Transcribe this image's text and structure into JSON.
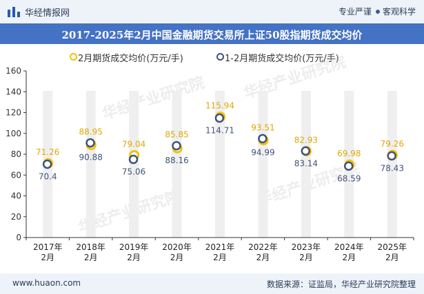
{
  "header": {
    "brand": "华经情报网",
    "tag_1": "专业严谨",
    "tag_2": "客观科学",
    "logo_icon": "bar-chart-logo-icon"
  },
  "watermark": "华经产业研究院",
  "footer": {
    "site": "www.huaon.com",
    "source": "数据来源：证监局，华经产业研究院整理"
  },
  "chart_data": {
    "type": "scatter",
    "title": "2017-2025年2月中国金融期货交易所上证50股指期货成交均价",
    "categories": [
      "2017年\n2月",
      "2018年\n2月",
      "2019年\n2月",
      "2020年\n2月",
      "2021年\n2月",
      "2022年\n2月",
      "2023年\n2月",
      "2024年\n2月",
      "2025年\n2月"
    ],
    "series": [
      {
        "name": "2月期货成交均价(万元/手)",
        "values": [
          71.26,
          88.95,
          79.04,
          85.85,
          115.94,
          93.51,
          82.93,
          69.98,
          79.26
        ],
        "color": "#f5c000",
        "label_color": "#e0a800"
      },
      {
        "name": "1-2月期货成交均价(万元/手)",
        "values": [
          70.4,
          90.88,
          75.06,
          88.16,
          114.71,
          94.99,
          83.14,
          68.59,
          78.43
        ],
        "color": "#3f5378",
        "label_color": "#3f5378"
      }
    ],
    "ylim": [
      0,
      160
    ],
    "yticks": [
      0,
      20,
      40,
      60,
      80,
      100,
      120,
      140,
      160
    ],
    "grid": false,
    "legend_position": "top",
    "column_band_color": "#efefef"
  }
}
